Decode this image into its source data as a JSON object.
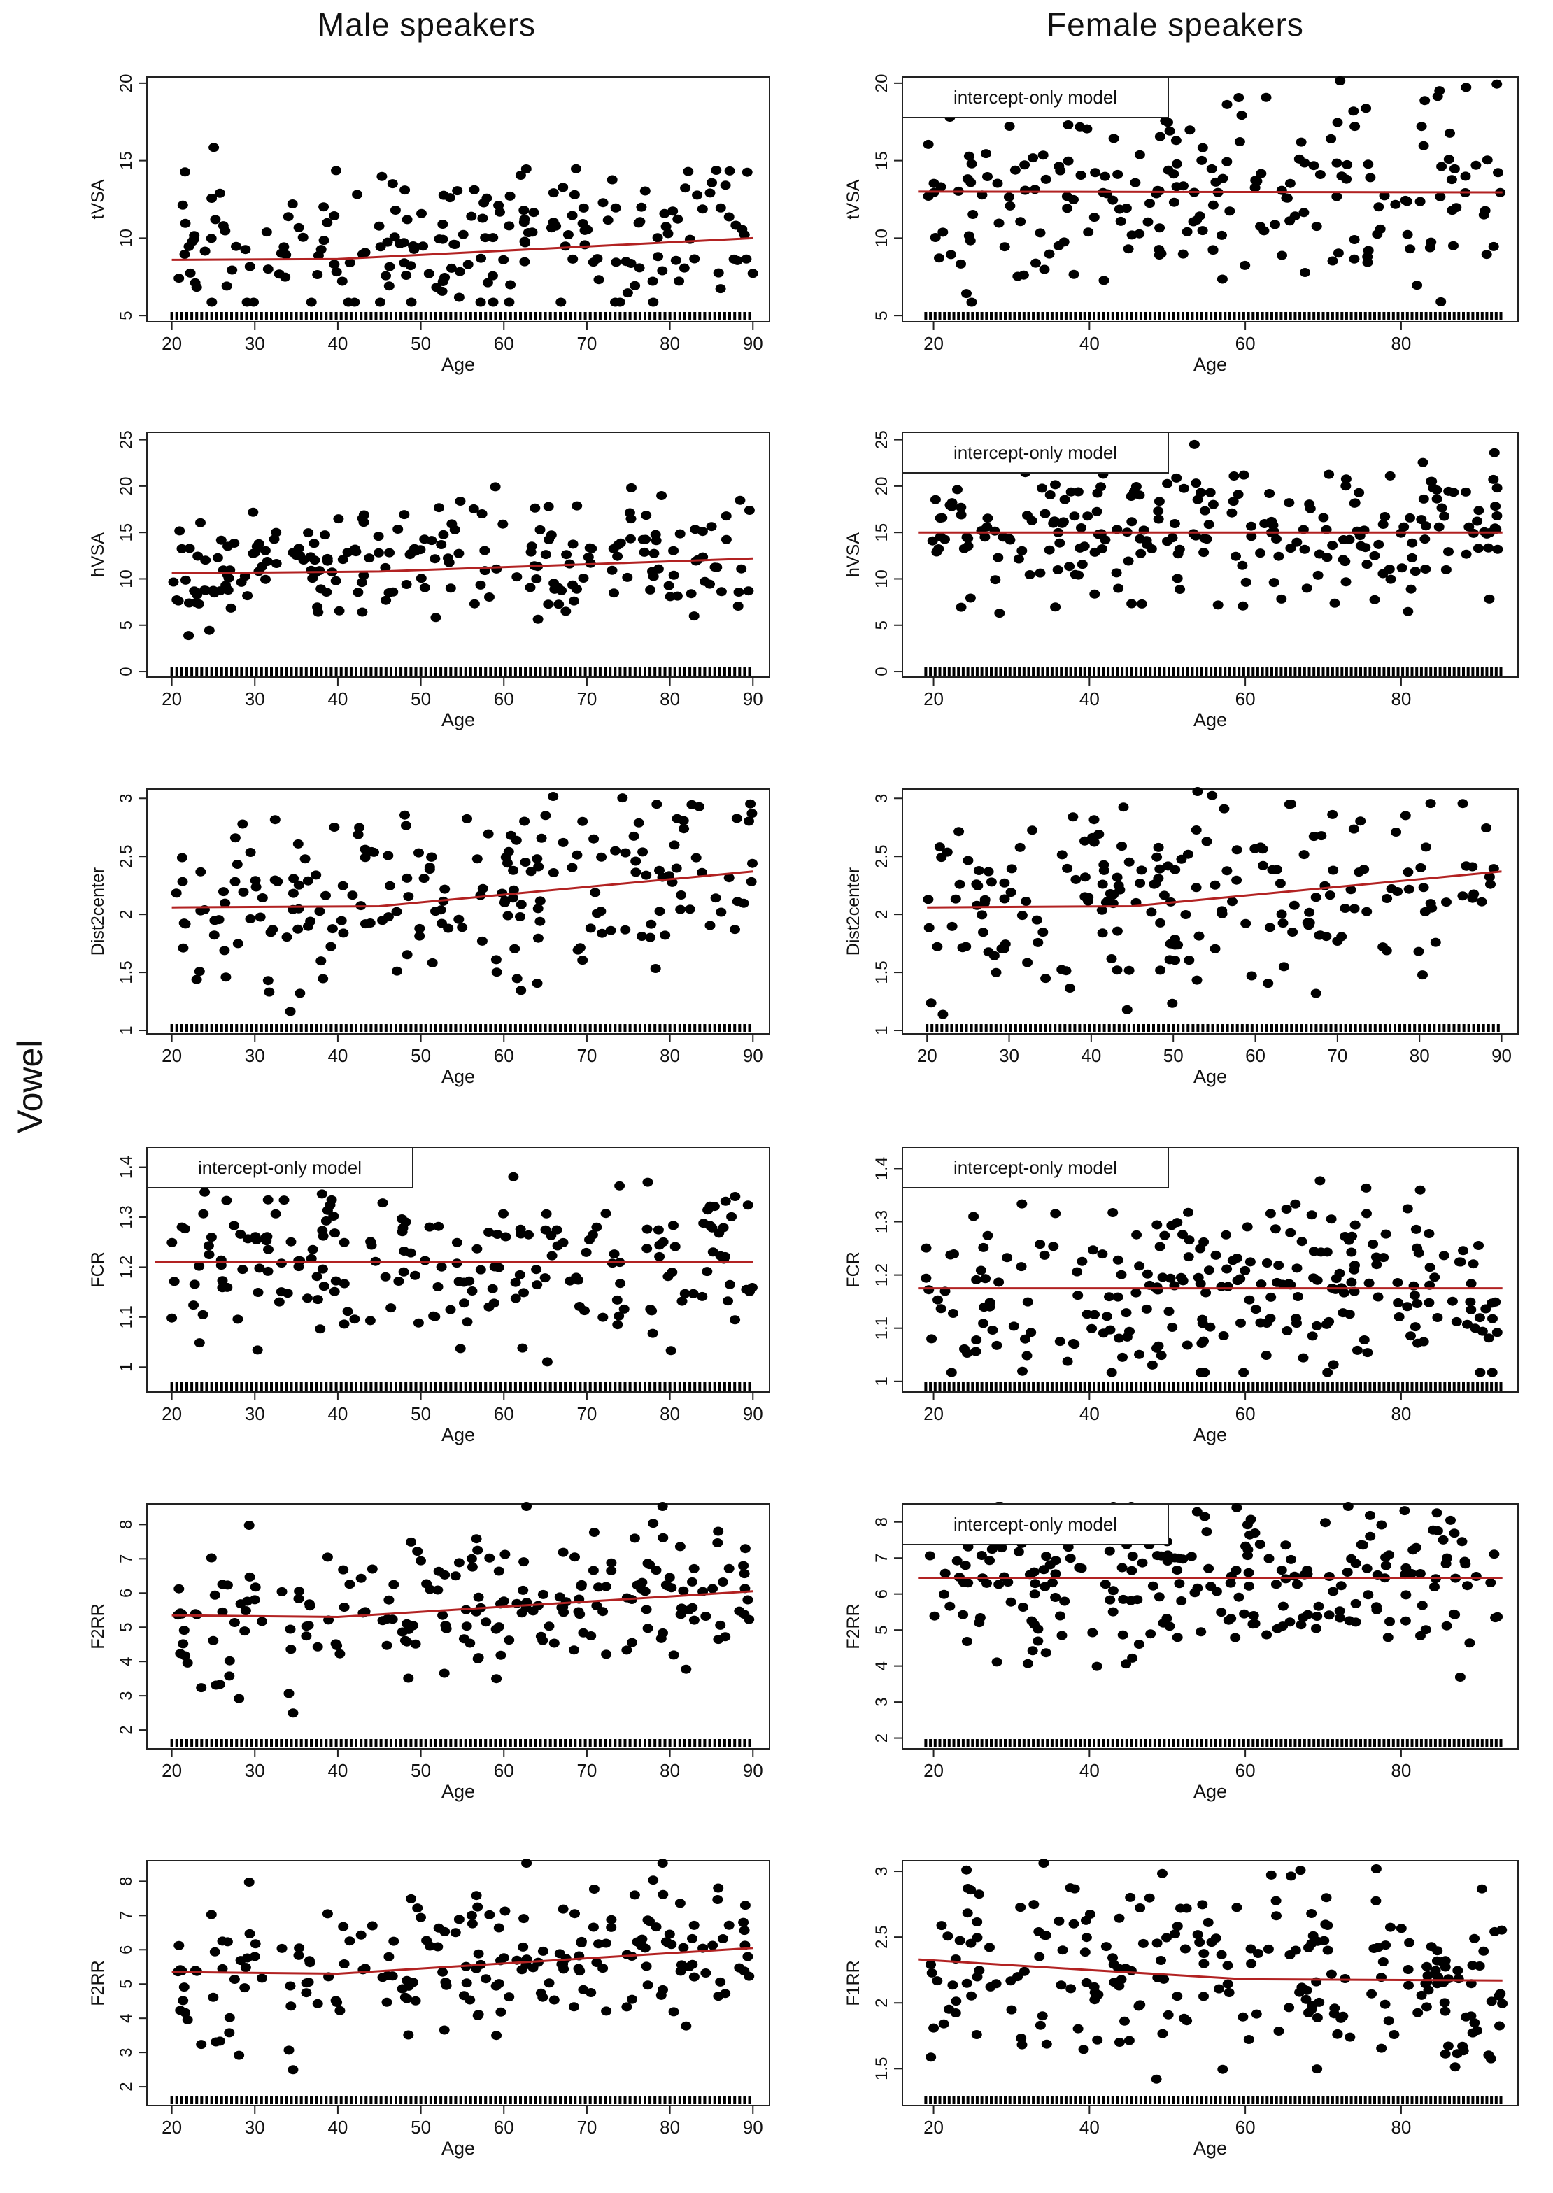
{
  "columns": {
    "male": "Male speakers",
    "female": "Female speakers"
  },
  "row_label": "Vowel",
  "colors": {
    "points": "#000000",
    "fit": "#b22222",
    "axis": "#222222"
  },
  "chart_data": [
    {
      "id": "m-tvsa",
      "type": "scatter",
      "col": "male",
      "ylabel": "tVSA",
      "xlabel": "Age",
      "xlim": [
        17,
        92
      ],
      "ylim": [
        4.6,
        20.4
      ],
      "xticks": [
        20,
        30,
        40,
        50,
        60,
        70,
        80,
        90
      ],
      "yticks": [
        5,
        10,
        15,
        20
      ],
      "seed": 11,
      "n": 200,
      "xrange": [
        20,
        90
      ],
      "ymean": [
        8.9,
        10.2
      ],
      "ysd": 2.4,
      "fit": [
        [
          20,
          8.6
        ],
        [
          40,
          8.65
        ],
        [
          90,
          10.0
        ]
      ],
      "rug": true
    },
    {
      "id": "f-tvsa",
      "type": "scatter",
      "col": "female",
      "ylabel": "tVSA",
      "xlabel": "Age",
      "xlim": [
        16,
        95
      ],
      "ylim": [
        4.6,
        20.4
      ],
      "xticks": [
        20,
        40,
        60,
        80
      ],
      "yticks": [
        5,
        10,
        15,
        20
      ],
      "seed": 23,
      "n": 210,
      "xrange": [
        19,
        93
      ],
      "ymean": [
        13,
        13
      ],
      "ysd": 3.2,
      "fit": [
        [
          18,
          13.0
        ],
        [
          93,
          12.95
        ]
      ],
      "note": "intercept-only model",
      "rug": true
    },
    {
      "id": "m-hvsa",
      "type": "scatter",
      "col": "male",
      "ylabel": "hVSA",
      "xlabel": "Age",
      "xlim": [
        17,
        92
      ],
      "ylim": [
        -0.6,
        25.8
      ],
      "xticks": [
        20,
        30,
        40,
        50,
        60,
        70,
        80,
        90
      ],
      "yticks": [
        0,
        5,
        10,
        15,
        20,
        25
      ],
      "seed": 37,
      "n": 210,
      "xrange": [
        20,
        90
      ],
      "ymean": [
        10.5,
        12.5
      ],
      "ysd": 3.0,
      "fit": [
        [
          20,
          10.6
        ],
        [
          45,
          10.8
        ],
        [
          90,
          12.2
        ]
      ],
      "rug": true
    },
    {
      "id": "f-hvsa",
      "type": "scatter",
      "col": "female",
      "ylabel": "hVSA",
      "xlabel": "Age",
      "xlim": [
        16,
        95
      ],
      "ylim": [
        -0.6,
        25.8
      ],
      "xticks": [
        20,
        40,
        60,
        80
      ],
      "yticks": [
        0,
        5,
        10,
        15,
        20,
        25
      ],
      "seed": 41,
      "n": 230,
      "xrange": [
        19,
        93
      ],
      "ymean": [
        15,
        15
      ],
      "ysd": 3.8,
      "fit": [
        [
          18,
          15.0
        ],
        [
          93,
          15.0
        ]
      ],
      "note": "intercept-only model",
      "rug": true
    },
    {
      "id": "m-dist",
      "type": "scatter",
      "col": "male",
      "ylabel": "Dist2center",
      "xlabel": "Age",
      "xlim": [
        17,
        92
      ],
      "ylim": [
        0.97,
        3.08
      ],
      "xticks": [
        20,
        30,
        40,
        50,
        60,
        70,
        80,
        90
      ],
      "yticks": [
        1.0,
        1.5,
        2.0,
        2.5,
        3.0
      ],
      "seed": 53,
      "n": 200,
      "xrange": [
        20,
        90
      ],
      "ymean": [
        2.05,
        2.4
      ],
      "ysd": 0.4,
      "fit": [
        [
          20,
          2.06
        ],
        [
          45,
          2.07
        ],
        [
          90,
          2.37
        ]
      ],
      "rug": true
    },
    {
      "id": "f-dist",
      "type": "scatter",
      "col": "female",
      "ylabel": "Dist2center",
      "xlabel": "Age",
      "xlim": [
        17,
        92
      ],
      "ylim": [
        0.97,
        3.08
      ],
      "xticks": [
        20,
        30,
        40,
        50,
        60,
        70,
        80,
        90
      ],
      "yticks": [
        1.0,
        1.5,
        2.0,
        2.5,
        3.0
      ],
      "seed": 59,
      "n": 200,
      "xrange": [
        20,
        90
      ],
      "ymean": [
        2.05,
        2.4
      ],
      "ysd": 0.4,
      "fit": [
        [
          20,
          2.06
        ],
        [
          45,
          2.07
        ],
        [
          90,
          2.37
        ]
      ],
      "rug": true
    },
    {
      "id": "m-fcr",
      "type": "scatter",
      "col": "male",
      "ylabel": "FCR",
      "xlabel": "Age",
      "xlim": [
        17,
        92
      ],
      "ylim": [
        0.95,
        1.44
      ],
      "xticks": [
        20,
        30,
        40,
        50,
        60,
        70,
        80,
        90
      ],
      "yticks": [
        1.0,
        1.1,
        1.2,
        1.3,
        1.4
      ],
      "seed": 67,
      "n": 200,
      "xrange": [
        20,
        90
      ],
      "ymean": [
        1.21,
        1.21
      ],
      "ysd": 0.08,
      "fit": [
        [
          18,
          1.21
        ],
        [
          90,
          1.21
        ]
      ],
      "note": "intercept-only model",
      "rug": true
    },
    {
      "id": "f-fcr",
      "type": "scatter",
      "col": "female",
      "ylabel": "FCR",
      "xlabel": "Age",
      "xlim": [
        16,
        95
      ],
      "ylim": [
        0.98,
        1.44
      ],
      "xticks": [
        20,
        40,
        60,
        80
      ],
      "yticks": [
        1.0,
        1.1,
        1.2,
        1.3,
        1.4
      ],
      "seed": 71,
      "n": 240,
      "xrange": [
        19,
        93
      ],
      "ymean": [
        1.17,
        1.17
      ],
      "ysd": 0.08,
      "fit": [
        [
          18,
          1.175
        ],
        [
          93,
          1.175
        ]
      ],
      "note": "intercept-only model",
      "rug": true
    },
    {
      "id": "m-f2rr-a",
      "type": "scatter",
      "col": "male",
      "ylabel": "F2RR",
      "xlabel": "Age",
      "xlim": [
        17,
        92
      ],
      "ylim": [
        1.45,
        8.6
      ],
      "xticks": [
        20,
        30,
        40,
        50,
        60,
        70,
        80,
        90
      ],
      "yticks": [
        2,
        3,
        4,
        5,
        6,
        7,
        8
      ],
      "seed": 83,
      "n": 200,
      "xrange": [
        20,
        90
      ],
      "ymean": [
        5.3,
        6.1
      ],
      "ysd": 1.1,
      "fit": [
        [
          20,
          5.35
        ],
        [
          40,
          5.3
        ],
        [
          90,
          6.05
        ]
      ],
      "rug": true
    },
    {
      "id": "f-f2rr",
      "type": "scatter",
      "col": "female",
      "ylabel": "F2RR",
      "xlabel": "Age",
      "xlim": [
        16,
        95
      ],
      "ylim": [
        1.7,
        8.5
      ],
      "xticks": [
        20,
        40,
        60,
        80
      ],
      "yticks": [
        2,
        3,
        4,
        5,
        6,
        7,
        8
      ],
      "seed": 89,
      "n": 240,
      "xrange": [
        19,
        93
      ],
      "ymean": [
        6.4,
        6.4
      ],
      "ysd": 1.1,
      "fit": [
        [
          18,
          6.45
        ],
        [
          93,
          6.45
        ]
      ],
      "note": "intercept-only model",
      "rug": true
    },
    {
      "id": "m-f2rr-b",
      "type": "scatter",
      "col": "male",
      "ylabel": "F2RR",
      "xlabel": "Age",
      "xlim": [
        17,
        92
      ],
      "ylim": [
        1.45,
        8.6
      ],
      "xticks": [
        20,
        30,
        40,
        50,
        60,
        70,
        80,
        90
      ],
      "yticks": [
        2,
        3,
        4,
        5,
        6,
        7,
        8
      ],
      "seed": 83,
      "n": 200,
      "xrange": [
        20,
        90
      ],
      "ymean": [
        5.3,
        6.1
      ],
      "ysd": 1.1,
      "fit": [
        [
          20,
          5.35
        ],
        [
          40,
          5.3
        ],
        [
          90,
          6.05
        ]
      ],
      "rug": true
    },
    {
      "id": "f-f1rr",
      "type": "scatter",
      "col": "female",
      "ylabel": "F1RR",
      "xlabel": "Age",
      "xlim": [
        16,
        95
      ],
      "ylim": [
        1.22,
        3.08
      ],
      "xticks": [
        20,
        40,
        60,
        80
      ],
      "yticks": [
        1.5,
        2.0,
        2.5,
        3.0
      ],
      "seed": 97,
      "n": 230,
      "xrange": [
        19,
        93
      ],
      "ymean": [
        2.3,
        2.15
      ],
      "ysd": 0.33,
      "fit": [
        [
          18,
          2.33
        ],
        [
          40,
          2.25
        ],
        [
          60,
          2.18
        ],
        [
          93,
          2.17
        ]
      ],
      "rug": true
    }
  ]
}
